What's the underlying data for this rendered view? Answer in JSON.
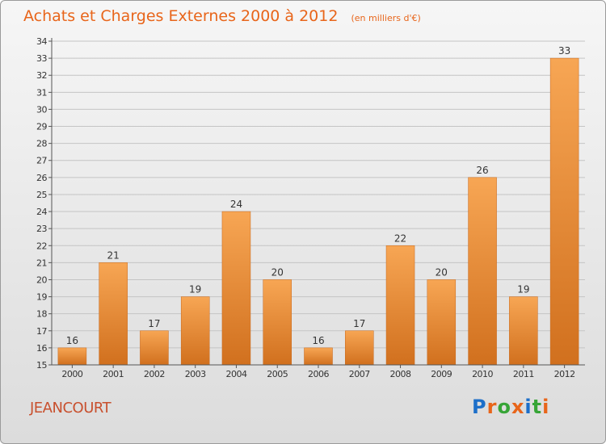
{
  "title": {
    "main": "Achats et Charges Externes 2000 à 2012",
    "unit": "(en milliers d'€)"
  },
  "commune": "JEANCOURT",
  "brand": {
    "text": "Proxiti",
    "letters": [
      "P",
      "r",
      "o",
      "x",
      "i",
      "t",
      "i"
    ],
    "letter_colors": [
      "#1d6fc9",
      "#e8651a",
      "#37a537",
      "#e8651a",
      "#1d6fc9",
      "#37a537",
      "#e8651a"
    ]
  },
  "colors": {
    "bar_top": "#f7a654",
    "bar_bottom": "#d1701e",
    "title": "#e8651a",
    "commune": "#c8502e"
  },
  "chart_data": {
    "type": "bar",
    "title": "Achats et Charges Externes 2000 à 2012",
    "subtitle": "(en milliers d'€)",
    "xlabel": "",
    "ylabel": "",
    "categories": [
      "2000",
      "2001",
      "2002",
      "2003",
      "2004",
      "2005",
      "2006",
      "2007",
      "2008",
      "2009",
      "2010",
      "2011",
      "2012"
    ],
    "values": [
      16,
      21,
      17,
      19,
      24,
      20,
      16,
      17,
      22,
      20,
      26,
      19,
      33
    ],
    "ylim": [
      15,
      34
    ],
    "yticks": [
      15,
      16,
      17,
      18,
      19,
      20,
      21,
      22,
      23,
      24,
      25,
      26,
      27,
      28,
      29,
      30,
      31,
      32,
      33,
      34
    ],
    "grid": true,
    "data_labels": true
  }
}
